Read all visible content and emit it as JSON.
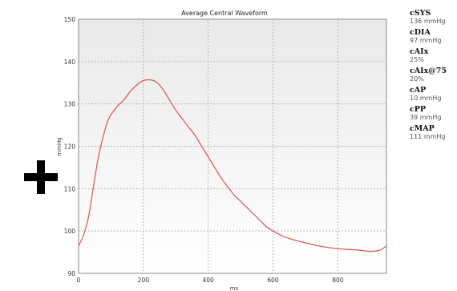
{
  "left_icon": "plus-icon",
  "metrics": [
    {
      "name": "cSYS",
      "value": "136 mmHg"
    },
    {
      "name": "cDIA",
      "value": "97 mmHg"
    },
    {
      "name": "cAIx",
      "value": "25%"
    },
    {
      "name": "cAIx@75",
      "value": "20%"
    },
    {
      "name": "cAP",
      "value": "10 mmHg"
    },
    {
      "name": "cPP",
      "value": "39 mmHg"
    },
    {
      "name": "cMAP",
      "value": "111 mmHg"
    }
  ],
  "chart_data": {
    "type": "line",
    "title": "Average Central Waveform",
    "xlabel": "ms",
    "ylabel": "mmHg",
    "xlim": [
      0,
      950
    ],
    "ylim": [
      90,
      150
    ],
    "x_ticks": [
      0,
      200,
      400,
      600,
      800
    ],
    "y_ticks": [
      90,
      100,
      110,
      120,
      130,
      140,
      150
    ],
    "grid": true,
    "series_color": "#e05050",
    "series": [
      {
        "x": [
          0,
          15,
          30,
          45,
          60,
          75,
          90,
          105,
          120,
          140,
          160,
          180,
          200,
          220,
          240,
          260,
          280,
          300,
          320,
          340,
          360,
          380,
          400,
          420,
          440,
          460,
          480,
          500,
          520,
          540,
          560,
          580,
          600,
          630,
          660,
          700,
          740,
          780,
          820,
          860,
          900,
          930,
          950
        ],
        "y": [
          96.5,
          99,
          103,
          110,
          117,
          122,
          126,
          128,
          129.5,
          131,
          133,
          134.5,
          135.5,
          135.7,
          135.2,
          133.5,
          131,
          128.5,
          126.5,
          124.5,
          122.5,
          120,
          117.5,
          115,
          112.5,
          110.5,
          108.5,
          107,
          105.5,
          104,
          102.5,
          101,
          100,
          98.8,
          98,
          97.2,
          96.5,
          96,
          95.7,
          95.5,
          95.2,
          95.5,
          96.5
        ]
      }
    ]
  }
}
